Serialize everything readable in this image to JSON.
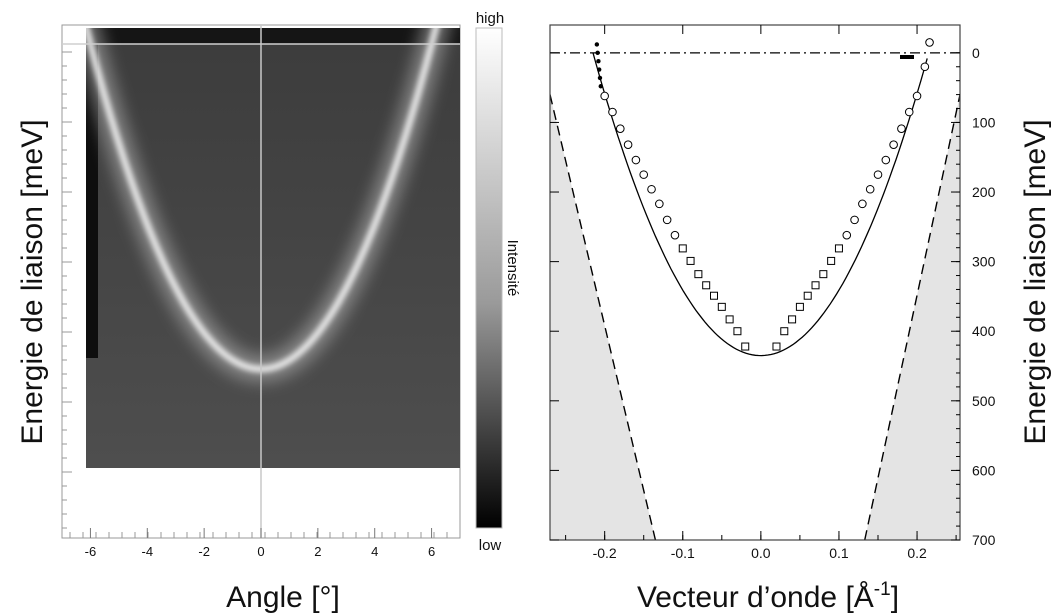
{
  "chart_data": [
    {
      "type": "heatmap",
      "title": "",
      "xlabel": "Angle [°]",
      "ylabel": "Energie de liaison [meV]",
      "xlim": [
        -7,
        7
      ],
      "x_ticks": [
        "-6",
        "-4",
        "-2",
        "0",
        "2",
        "4",
        "6"
      ],
      "y_ticks": [],
      "colorbar": {
        "label": "Intensité",
        "max_label": "high",
        "min_label": "low"
      },
      "band": {
        "shape": "parabola",
        "vertex_angle_deg": 0,
        "vertex_energy_meV": 435,
        "edge_angle_deg": 6,
        "edge_energy_meV": 0
      },
      "colors": {
        "bright": "#f2f2f2",
        "dark": "#111111",
        "background": "#464646"
      }
    },
    {
      "type": "scatter",
      "title": "",
      "xlabel": "Vecteur d’onde [Å",
      "xlabel_sup": "-1",
      "xlabel_end": "]",
      "ylabel": "Energie de liaison [meV]",
      "xlim": [
        -0.27,
        0.255
      ],
      "ylim": [
        700,
        -40
      ],
      "x_ticks": [
        "-0.2",
        "-0.1",
        "0.0",
        "0.1",
        "0.2"
      ],
      "y_ticks": [
        "0",
        "100",
        "200",
        "300",
        "400",
        "500",
        "600",
        "700"
      ],
      "series": [
        {
          "marker": "filled-circle",
          "x": [
            -0.21,
            -0.209,
            -0.208,
            -0.207,
            -0.206,
            -0.205
          ],
          "y": [
            -12,
            0,
            12,
            24,
            36,
            48
          ]
        },
        {
          "marker": "open-circle",
          "x": [
            -0.2,
            -0.19,
            -0.18,
            -0.17,
            -0.16,
            -0.15,
            -0.14,
            -0.13,
            -0.12,
            -0.11,
            0.11,
            0.12,
            0.13,
            0.14,
            0.15,
            0.16,
            0.17,
            0.18,
            0.19,
            0.2,
            0.21,
            0.216
          ],
          "y": [
            62,
            85,
            109,
            132,
            154,
            175,
            196,
            217,
            240,
            262,
            262,
            240,
            217,
            196,
            175,
            154,
            132,
            109,
            85,
            62,
            20,
            -15
          ]
        },
        {
          "marker": "open-square",
          "x": [
            -0.1,
            -0.09,
            -0.08,
            -0.07,
            -0.06,
            -0.05,
            -0.04,
            -0.03,
            -0.02,
            0.02,
            0.03,
            0.04,
            0.05,
            0.06,
            0.07,
            0.08,
            0.09,
            0.1
          ],
          "y": [
            281,
            299,
            318,
            334,
            349,
            365,
            383,
            400,
            422,
            422,
            400,
            383,
            365,
            349,
            334,
            318,
            299,
            281
          ]
        },
        {
          "marker": "solid-line",
          "shape": "parabola",
          "vertex_x": 0,
          "vertex_y": 435,
          "x_range": [
            -0.215,
            0.216
          ]
        }
      ],
      "dashed_lines": [
        {
          "x": [
            -0.27,
            -0.135
          ],
          "y": [
            60,
            700
          ]
        },
        {
          "x": [
            0.133,
            0.255
          ],
          "y": [
            700,
            60
          ]
        }
      ],
      "fermi_level_y": 0,
      "colors": {
        "shade": "#e4e4e4",
        "line": "#000000"
      }
    }
  ]
}
